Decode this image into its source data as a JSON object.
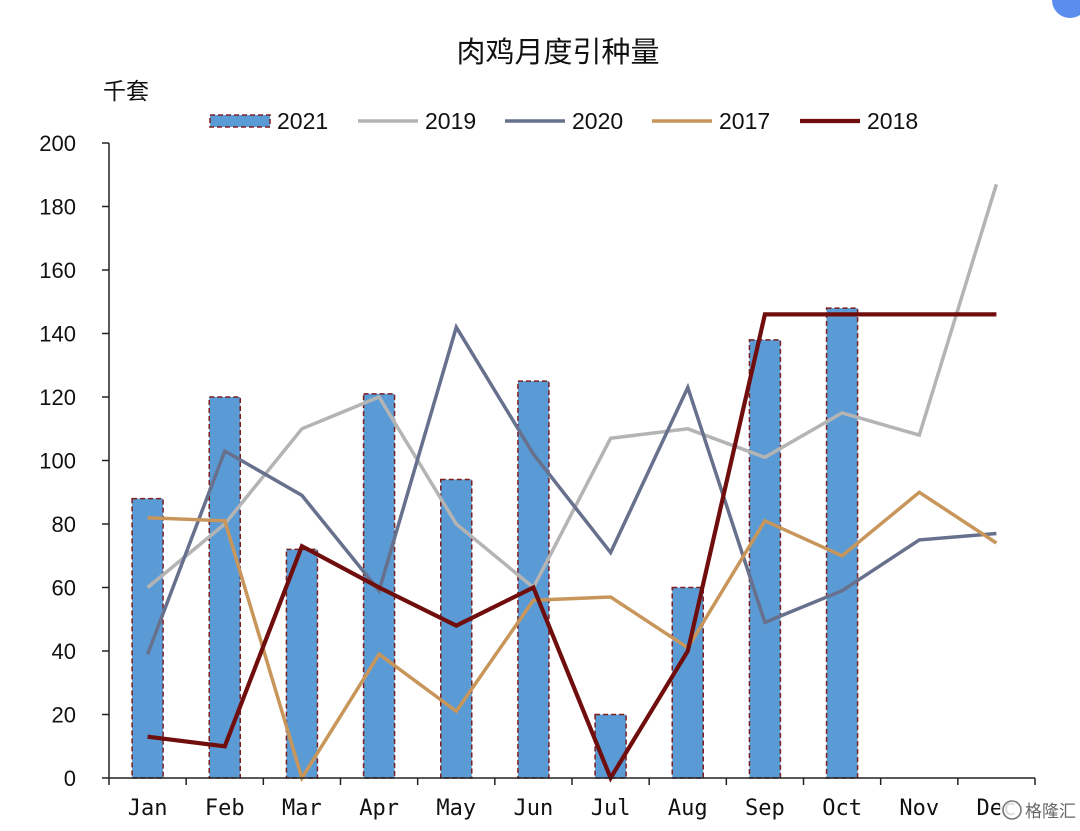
{
  "chart_data": {
    "type": "bar",
    "title": "肉鸡月度引种量",
    "ylabel": "千套",
    "categories": [
      "Jan",
      "Feb",
      "Mar",
      "Apr",
      "May",
      "Jun",
      "Jul",
      "Aug",
      "Sep",
      "Oct",
      "Nov",
      "Dec"
    ],
    "ylim": [
      0,
      200
    ],
    "yticks": [
      0,
      20,
      40,
      60,
      80,
      100,
      120,
      140,
      160,
      180,
      200
    ],
    "grid": false,
    "legend_position": "top",
    "series": [
      {
        "name": "2021",
        "type": "bar",
        "color": "#5b9bd5",
        "border_color": "#7b1e1e",
        "values": [
          88,
          120,
          72,
          121,
          94,
          125,
          20,
          60,
          138,
          148,
          null,
          null
        ]
      },
      {
        "name": "2019",
        "type": "line",
        "color": "#b4b4b4",
        "values": [
          60,
          80,
          110,
          120,
          80,
          60,
          107,
          110,
          101,
          115,
          108,
          187
        ]
      },
      {
        "name": "2020",
        "type": "line",
        "color": "#67708c",
        "values": [
          39,
          103,
          89,
          59,
          142,
          102,
          71,
          123,
          49,
          59,
          75,
          77
        ]
      },
      {
        "name": "2017",
        "type": "line",
        "color": "#c8965a",
        "values": [
          82,
          81,
          0,
          39,
          21,
          56,
          57,
          41,
          81,
          70,
          90,
          74
        ]
      },
      {
        "name": "2018",
        "type": "line",
        "color": "#700d0d",
        "values": [
          13,
          10,
          73,
          60,
          48,
          60,
          0,
          40,
          146,
          146,
          146,
          146
        ]
      }
    ]
  },
  "watermark": {
    "text": "格隆汇",
    "icon": "glh-logo-icon"
  }
}
